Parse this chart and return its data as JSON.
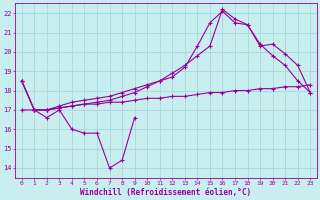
{
  "bg_color": "#c8eef0",
  "grid_color": "#a0d4d8",
  "line_color": "#990099",
  "marker": "+",
  "xlabel": "Windchill (Refroidissement éolien,°C)",
  "ylabel_ticks": [
    14,
    15,
    16,
    17,
    18,
    19,
    20,
    21,
    22
  ],
  "xlim": [
    -0.5,
    23.5
  ],
  "ylim": [
    13.5,
    22.5
  ],
  "x_ticks": [
    0,
    1,
    2,
    3,
    4,
    5,
    6,
    7,
    8,
    9,
    10,
    11,
    12,
    13,
    14,
    15,
    16,
    17,
    18,
    19,
    20,
    21,
    22,
    23
  ],
  "series1_x": [
    0,
    1,
    2,
    3,
    4,
    5,
    6,
    7,
    8,
    9
  ],
  "series1_y": [
    18.5,
    17.0,
    16.6,
    17.0,
    16.0,
    15.8,
    15.8,
    14.0,
    14.4,
    16.6
  ],
  "series2_x": [
    0,
    1,
    2,
    3,
    4,
    5,
    6,
    7,
    8,
    9,
    10,
    11,
    12,
    13,
    14,
    15,
    16,
    17,
    18,
    19,
    20,
    21,
    22,
    23
  ],
  "series2_y": [
    17.0,
    17.0,
    17.0,
    17.1,
    17.2,
    17.3,
    17.3,
    17.4,
    17.4,
    17.5,
    17.6,
    17.6,
    17.7,
    17.7,
    17.8,
    17.9,
    17.9,
    18.0,
    18.0,
    18.1,
    18.1,
    18.2,
    18.2,
    18.3
  ],
  "series3_x": [
    0,
    1,
    2,
    3,
    4,
    5,
    6,
    7,
    8,
    9,
    10,
    11,
    12,
    13,
    14,
    15,
    16,
    17,
    18,
    19,
    20,
    21,
    22,
    23
  ],
  "series3_y": [
    18.5,
    17.0,
    17.0,
    17.2,
    17.4,
    17.5,
    17.6,
    17.7,
    17.9,
    18.1,
    18.3,
    18.5,
    18.7,
    19.2,
    20.3,
    21.5,
    22.1,
    21.5,
    21.4,
    20.4,
    19.8,
    19.3,
    18.5,
    17.9
  ],
  "series4_x": [
    0,
    1,
    2,
    3,
    4,
    5,
    6,
    7,
    8,
    9,
    10,
    11,
    12,
    13,
    14,
    15,
    16,
    17,
    18,
    19,
    20,
    21,
    22,
    23
  ],
  "series4_y": [
    18.5,
    17.0,
    17.0,
    17.1,
    17.2,
    17.3,
    17.4,
    17.5,
    17.7,
    17.9,
    18.2,
    18.5,
    18.9,
    19.3,
    19.8,
    20.3,
    22.2,
    21.7,
    21.4,
    20.3,
    20.4,
    19.9,
    19.3,
    17.9
  ]
}
